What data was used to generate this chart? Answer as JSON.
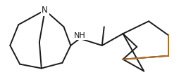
{
  "background_color": "#ffffff",
  "line_color": "#1a1a1a",
  "n_color": "#1a1a1a",
  "nh_color": "#1a1a1a",
  "orange_line_color": "#b87020",
  "figsize": [
    2.55,
    1.2
  ],
  "dpi": 100,
  "n_label": "N",
  "nh_label": "NH",
  "font_size": 8.5,
  "lw": 1.4
}
